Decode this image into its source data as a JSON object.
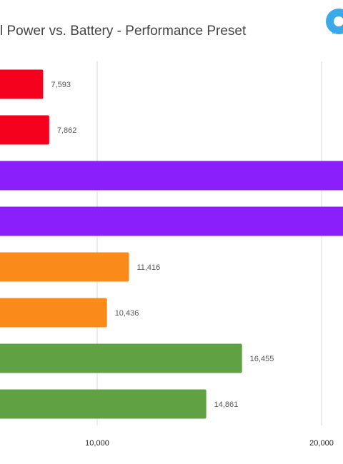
{
  "chart_data": {
    "type": "bar",
    "orientation": "horizontal",
    "title": "l Power vs. Battery - Performance Preset",
    "categories": [
      "",
      "",
      "",
      "",
      "",
      "",
      "",
      ""
    ],
    "values": [
      7593,
      7862,
      21000,
      21000,
      11416,
      10436,
      16455,
      14861
    ],
    "value_labels": [
      "7,593",
      "7,862",
      "",
      "",
      "11,416",
      "10,436",
      "16,455",
      "14,861"
    ],
    "colors": [
      "#f5001d",
      "#f5001d",
      "#8b1ffb",
      "#8b1ffb",
      "#fa8a1a",
      "#fa8a1a",
      "#60a144",
      "#60a144"
    ],
    "x_ticks": [
      10000,
      20000
    ],
    "x_tick_labels": [
      "10,000",
      "20,000"
    ],
    "xlim": [
      5700,
      21000
    ],
    "grid": true,
    "xlabel": "",
    "ylabel": ""
  },
  "icon": {
    "name": "logo-icon",
    "color": "#39a9e8"
  }
}
